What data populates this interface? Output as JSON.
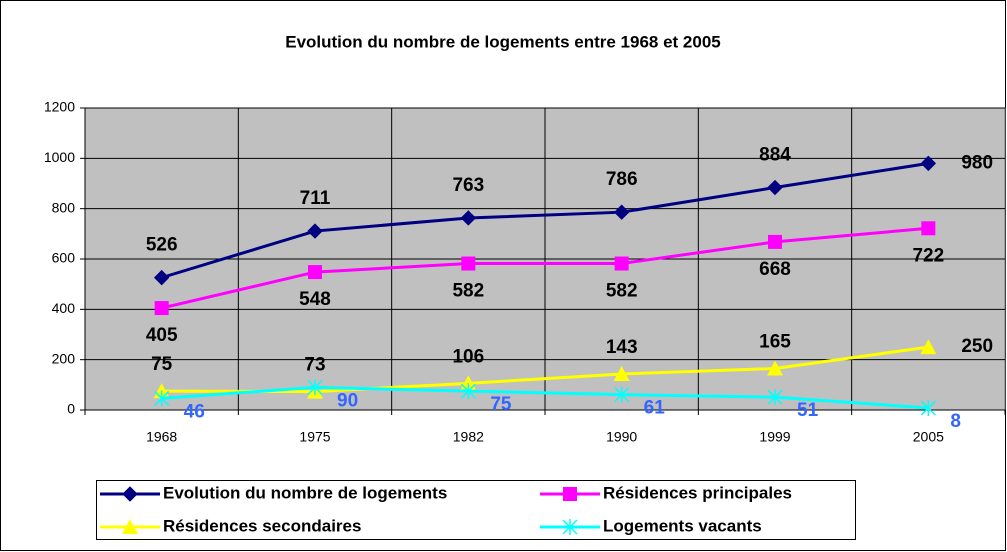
{
  "chart_data": {
    "type": "line",
    "title": "Evolution du nombre de logements entre 1968 et 2005",
    "categories": [
      "1968",
      "1975",
      "1982",
      "1990",
      "1999",
      "2005"
    ],
    "series": [
      {
        "name": "Evolution du nombre de logements",
        "color": "#000080",
        "marker": "diamond",
        "label_color": "#000000",
        "values": [
          526,
          711,
          763,
          786,
          884,
          980
        ]
      },
      {
        "name": "Résidences principales",
        "color": "#ff00ff",
        "marker": "square",
        "label_color": "#000000",
        "values": [
          405,
          548,
          582,
          582,
          668,
          722
        ]
      },
      {
        "name": "Résidences secondaires",
        "color": "#ffff00",
        "marker": "triangle",
        "label_color": "#000000",
        "values": [
          75,
          73,
          106,
          143,
          165,
          250
        ]
      },
      {
        "name": "Logements vacants",
        "color": "#00ffff",
        "marker": "cross",
        "label_color": "#3366ff",
        "values": [
          46,
          90,
          75,
          61,
          51,
          8
        ]
      }
    ],
    "ylim": [
      0,
      1200
    ],
    "yticks": [
      0,
      200,
      400,
      600,
      800,
      1000,
      1200
    ],
    "grid": true,
    "plot_background": "#c0c0c0"
  }
}
